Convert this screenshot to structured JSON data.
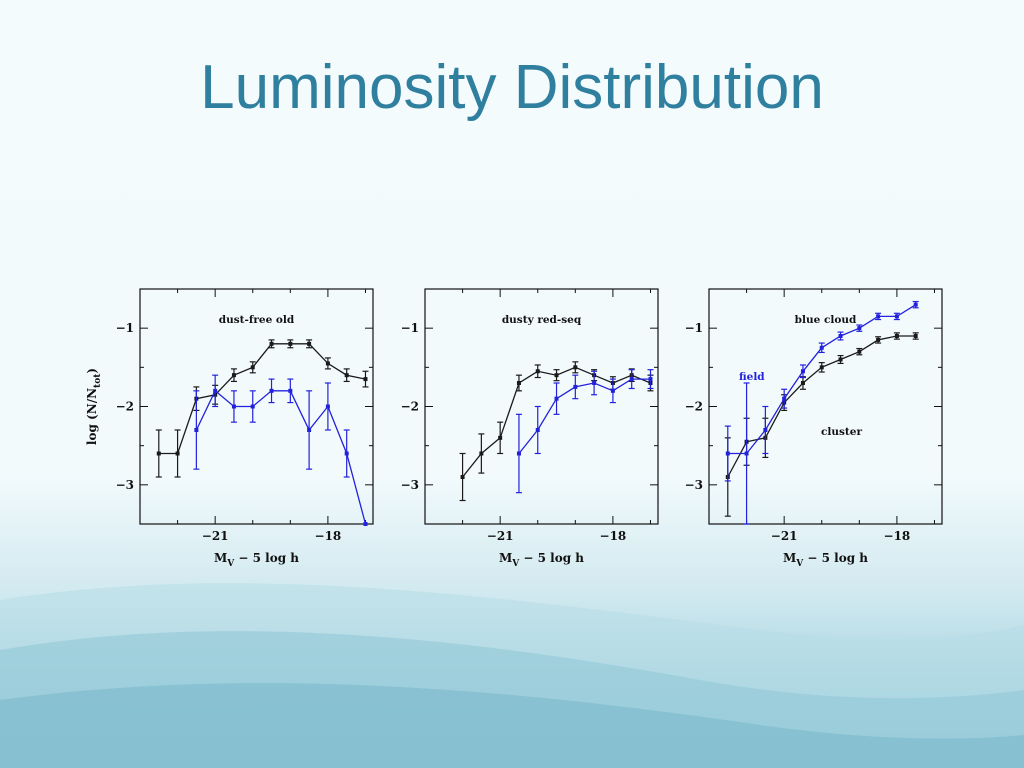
{
  "slide": {
    "title": "Luminosity Distribution"
  },
  "colors": {
    "title": "#2f7f9f",
    "cluster": "#1a1a1a",
    "field": "#2222dd"
  },
  "chart_data": [
    {
      "type": "line",
      "panel_label": "dust-free old",
      "xlabel_main": "M",
      "xlabel_sub": "V",
      "xlabel_rest": " − 5 log h",
      "ylabel_main": "log (N/N",
      "ylabel_sub": "tot",
      "ylabel_end": ")",
      "xlim": [
        -23.0,
        -16.8
      ],
      "ylim": [
        -3.5,
        -0.5
      ],
      "xticks": [
        -21,
        -18
      ],
      "xtick_labels": [
        "−21",
        "−18"
      ],
      "yticks": [
        -1,
        -2,
        -3
      ],
      "ytick_labels": [
        "−1",
        "−2",
        "−3"
      ],
      "series": [
        {
          "color": "#1a1a1a",
          "x": [
            -22.5,
            -22.0,
            -21.5,
            -21.0,
            -20.5,
            -20.0,
            -19.5,
            -19.0,
            -18.5,
            -18.0,
            -17.5,
            -17.0
          ],
          "y": [
            -2.6,
            -2.6,
            -1.9,
            -1.85,
            -1.6,
            -1.5,
            -1.2,
            -1.2,
            -1.2,
            -1.45,
            -1.6,
            -1.65
          ],
          "err": [
            0.3,
            0.3,
            0.15,
            0.12,
            0.08,
            0.07,
            0.05,
            0.05,
            0.05,
            0.07,
            0.08,
            0.1
          ]
        },
        {
          "color": "#2222dd",
          "x": [
            -21.5,
            -21.0,
            -20.5,
            -20.0,
            -19.5,
            -19.0,
            -18.5,
            -18.0,
            -17.5,
            -17.0
          ],
          "y": [
            -2.3,
            -1.8,
            -2.0,
            -2.0,
            -1.8,
            -1.8,
            -2.3,
            -2.0,
            -2.6,
            -3.5
          ],
          "err": [
            0.5,
            0.2,
            0.2,
            0.2,
            0.15,
            0.15,
            0.5,
            0.3,
            0.3,
            0.0
          ]
        }
      ]
    },
    {
      "type": "line",
      "panel_label": "dusty red-seq",
      "xlabel_main": "M",
      "xlabel_sub": "V",
      "xlabel_rest": " − 5 log h",
      "xlim": [
        -23.0,
        -16.8
      ],
      "ylim": [
        -3.5,
        -0.5
      ],
      "xticks": [
        -21,
        -18
      ],
      "xtick_labels": [
        "−21",
        "−18"
      ],
      "yticks": [
        -1,
        -2,
        -3
      ],
      "ytick_labels": [
        "−1",
        "−2",
        "−3"
      ],
      "series": [
        {
          "color": "#1a1a1a",
          "x": [
            -22.0,
            -21.5,
            -21.0,
            -20.5,
            -20.0,
            -19.5,
            -19.0,
            -18.5,
            -18.0,
            -17.5,
            -17.0
          ],
          "y": [
            -2.9,
            -2.6,
            -2.4,
            -1.7,
            -1.55,
            -1.6,
            -1.5,
            -1.6,
            -1.7,
            -1.6,
            -1.7
          ],
          "err": [
            0.3,
            0.25,
            0.2,
            0.1,
            0.08,
            0.07,
            0.07,
            0.07,
            0.08,
            0.08,
            0.1
          ]
        },
        {
          "color": "#2222dd",
          "x": [
            -20.5,
            -20.0,
            -19.5,
            -19.0,
            -18.5,
            -18.0,
            -17.5,
            -17.0
          ],
          "y": [
            -2.6,
            -2.3,
            -1.9,
            -1.75,
            -1.7,
            -1.8,
            -1.65,
            -1.65
          ],
          "err": [
            0.5,
            0.3,
            0.2,
            0.15,
            0.15,
            0.15,
            0.12,
            0.12
          ]
        }
      ]
    },
    {
      "type": "line",
      "panel_label": "blue cloud",
      "series_label_field": "field",
      "series_label_cluster": "cluster",
      "xlabel_main": "M",
      "xlabel_sub": "V",
      "xlabel_rest": " − 5 log h",
      "xlim": [
        -23.0,
        -16.8
      ],
      "ylim": [
        -3.5,
        -0.5
      ],
      "xticks": [
        -21,
        -18
      ],
      "xtick_labels": [
        "−21",
        "−18"
      ],
      "yticks": [
        -1,
        -2,
        -3
      ],
      "ytick_labels": [
        "−1",
        "−2",
        "−3"
      ],
      "series": [
        {
          "color": "#1a1a1a",
          "x": [
            -22.5,
            -22.0,
            -21.5,
            -21.0,
            -20.5,
            -20.0,
            -19.5,
            -19.0,
            -18.5,
            -18.0,
            -17.5
          ],
          "y": [
            -2.9,
            -2.45,
            -2.4,
            -1.95,
            -1.7,
            -1.5,
            -1.4,
            -1.3,
            -1.15,
            -1.1,
            -1.1
          ],
          "err": [
            0.5,
            0.3,
            0.25,
            0.1,
            0.08,
            0.06,
            0.05,
            0.04,
            0.04,
            0.04,
            0.04
          ]
        },
        {
          "color": "#2222dd",
          "x": [
            -22.5,
            -22.0,
            -21.5,
            -21.0,
            -20.5,
            -20.0,
            -19.5,
            -19.0,
            -18.5,
            -18.0,
            -17.5
          ],
          "y": [
            -2.6,
            -2.6,
            -2.3,
            -1.9,
            -1.55,
            -1.25,
            -1.1,
            -1.0,
            -0.85,
            -0.85,
            -0.7
          ],
          "err": [
            0.35,
            0.9,
            0.3,
            0.12,
            0.08,
            0.06,
            0.05,
            0.04,
            0.04,
            0.04,
            0.04
          ]
        }
      ]
    }
  ]
}
